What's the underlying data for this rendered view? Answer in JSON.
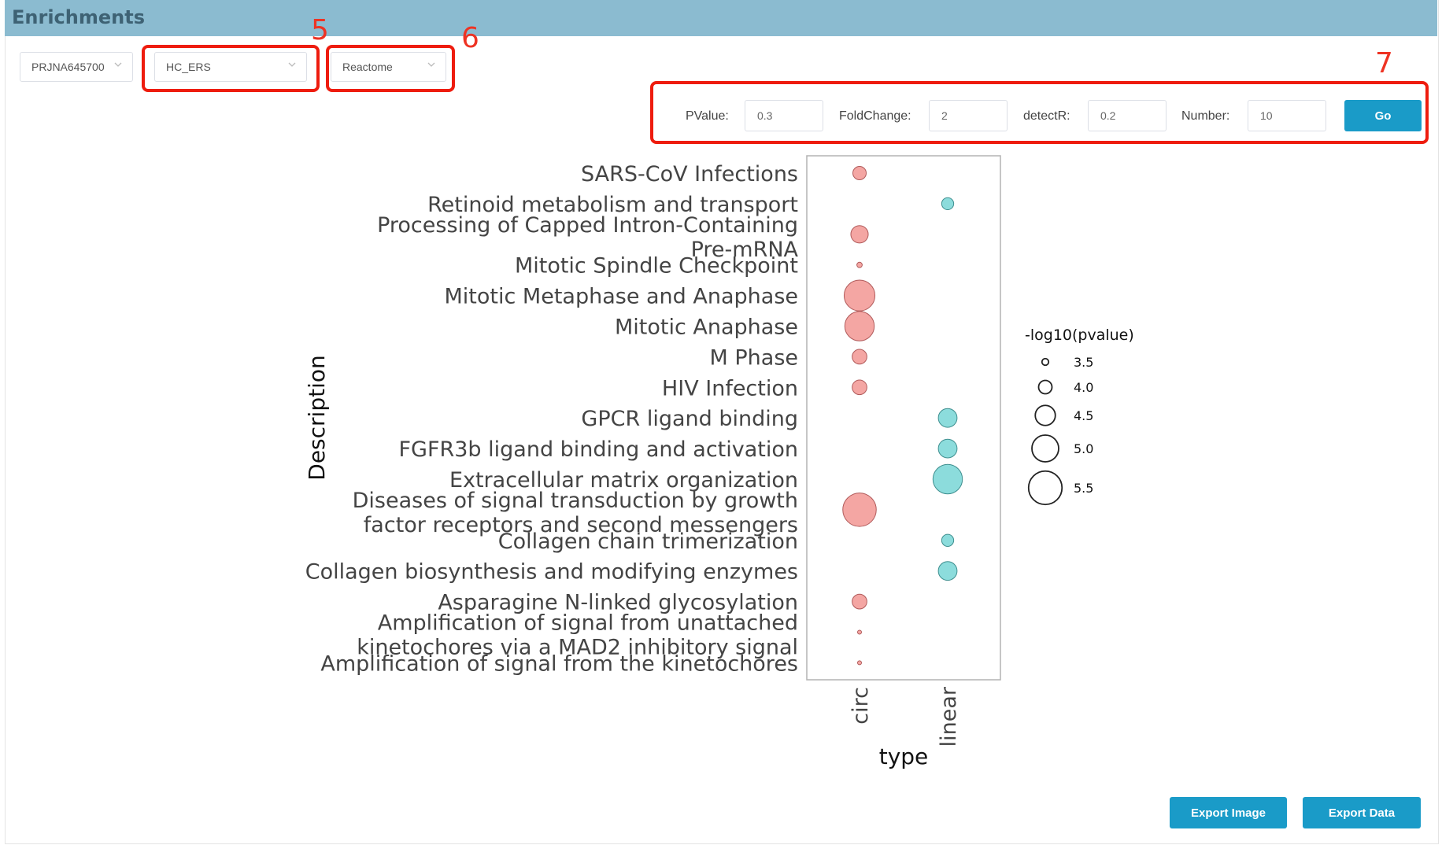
{
  "header": {
    "title": "Enrichments"
  },
  "filters": {
    "project": "PRJNA645700",
    "group": "HC_ERS",
    "database": "Reactome"
  },
  "callouts": {
    "group": "5",
    "database": "6",
    "params": "7"
  },
  "params": {
    "pvalue_label": "PValue:",
    "pvalue": "0.3",
    "foldchange_label": "FoldChange:",
    "foldchange": "2",
    "detectr_label": "detectR:",
    "detectr": "0.2",
    "number_label": "Number:",
    "number": "10",
    "go_label": "Go"
  },
  "actions": {
    "export_image": "Export Image",
    "export_data": "Export Data"
  },
  "colors": {
    "header": "#8bbbd0",
    "circ": "#f4a6a3",
    "linear": "#8cdcdc",
    "button": "#1a9bc8",
    "callout": "#ee1c0e"
  },
  "chart_data": {
    "type": "scatter",
    "xlabel": "type",
    "ylabel": "Description",
    "categories_x": [
      "circ",
      "linear"
    ],
    "legend_title": "-log10(pvalue)",
    "legend_values": [
      3.5,
      4.0,
      4.5,
      5.0,
      5.5
    ],
    "legend_position": "right",
    "rows": [
      {
        "label": [
          "SARS-CoV Infections"
        ],
        "type": "circ",
        "value": 4.0
      },
      {
        "label": [
          "Retinoid metabolism and transport"
        ],
        "type": "linear",
        "value": 3.9
      },
      {
        "label": [
          "Processing of Capped Intron-Containing",
          "Pre-mRNA"
        ],
        "type": "circ",
        "value": 4.3
      },
      {
        "label": [
          "Mitotic Spindle Checkpoint"
        ],
        "type": "circ",
        "value": 3.4
      },
      {
        "label": [
          "Mitotic Metaphase and Anaphase"
        ],
        "type": "circ",
        "value": 5.3
      },
      {
        "label": [
          "Mitotic Anaphase"
        ],
        "type": "circ",
        "value": 5.2
      },
      {
        "label": [
          "M Phase"
        ],
        "type": "circ",
        "value": 4.1
      },
      {
        "label": [
          "HIV Infection"
        ],
        "type": "circ",
        "value": 4.1
      },
      {
        "label": [
          "GPCR ligand binding"
        ],
        "type": "linear",
        "value": 4.4
      },
      {
        "label": [
          "FGFR3b ligand binding and activation"
        ],
        "type": "linear",
        "value": 4.4
      },
      {
        "label": [
          "Extracellular matrix organization"
        ],
        "type": "linear",
        "value": 5.2
      },
      {
        "label": [
          "Diseases of signal transduction by growth",
          "factor receptors and second messengers"
        ],
        "type": "circ",
        "value": 5.5
      },
      {
        "label": [
          "Collagen chain trimerization"
        ],
        "type": "linear",
        "value": 3.9
      },
      {
        "label": [
          "Collagen biosynthesis and modifying enzymes"
        ],
        "type": "linear",
        "value": 4.4
      },
      {
        "label": [
          "Asparagine N-linked glycosylation"
        ],
        "type": "circ",
        "value": 4.1
      },
      {
        "label": [
          "Amplification of signal from unattached",
          "kinetochores via a MAD2 inhibitory signal"
        ],
        "type": "circ",
        "value": 3.2
      },
      {
        "label": [
          "Amplification of signal from the kinetochores"
        ],
        "type": "circ",
        "value": 3.2
      }
    ]
  }
}
